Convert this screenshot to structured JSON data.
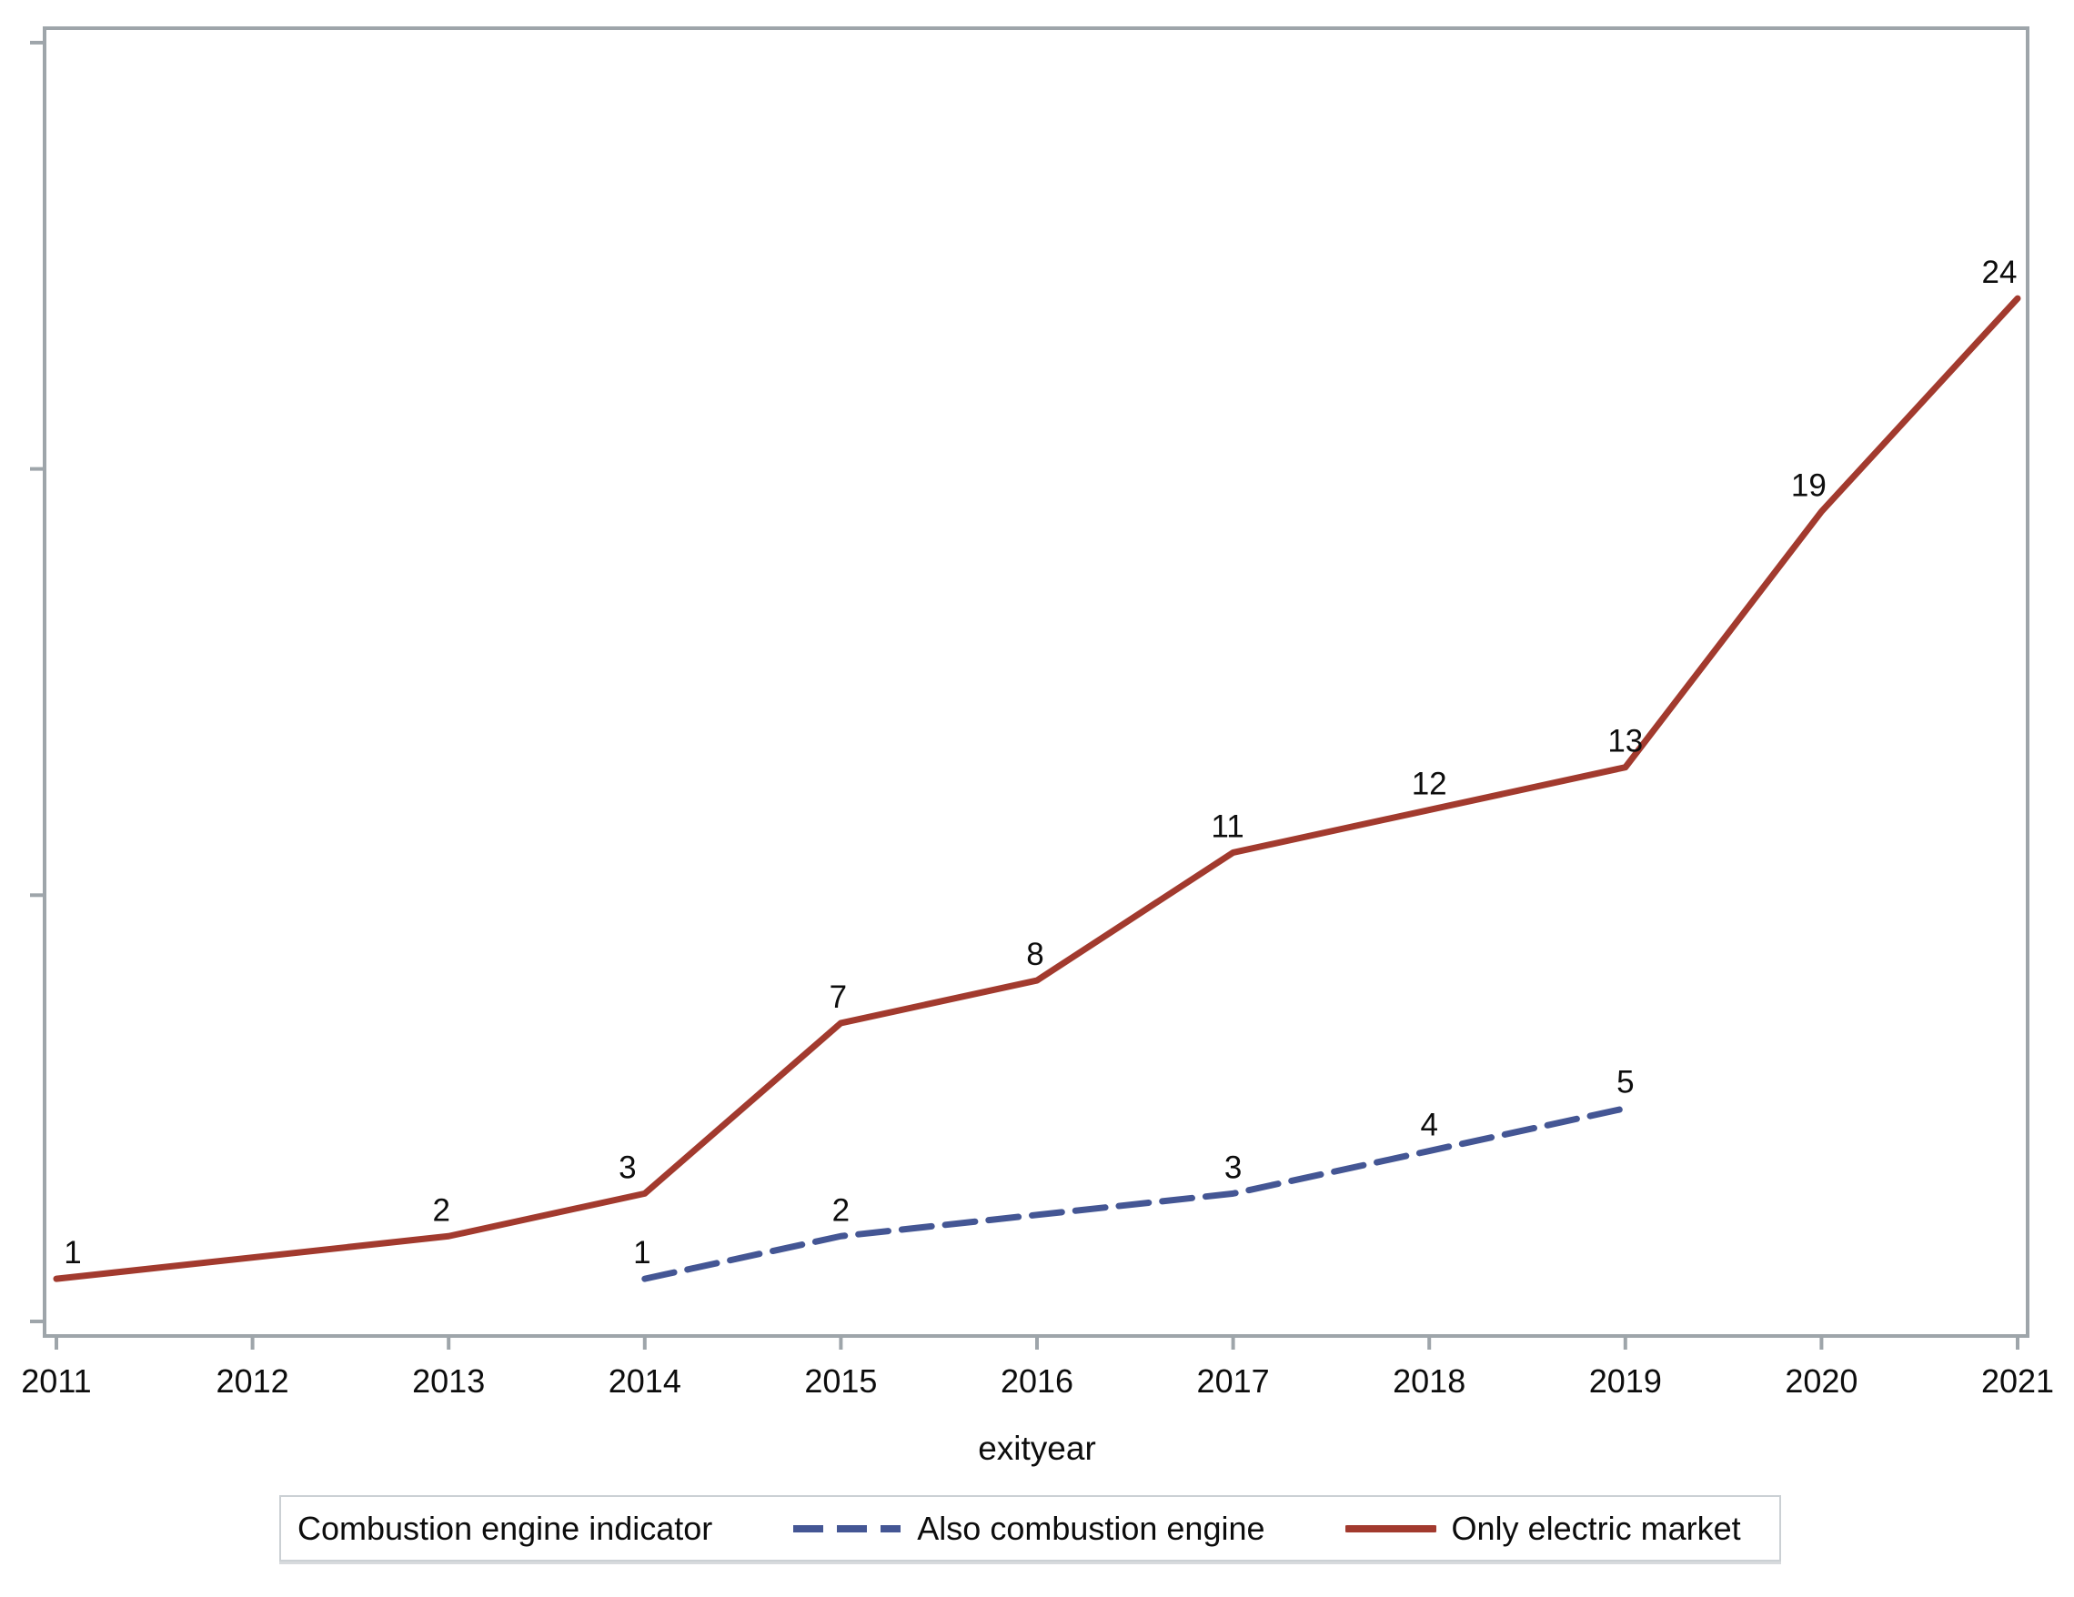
{
  "chart_data": {
    "type": "line",
    "title": "",
    "xlabel": "exityear",
    "ylabel": "",
    "x_ticks": [
      2011,
      2012,
      2013,
      2014,
      2015,
      2016,
      2017,
      2018,
      2019,
      2020,
      2021
    ],
    "y_axis": {
      "tick_values": [
        0,
        10,
        20,
        30
      ],
      "tick_labels_shown": false,
      "ylim": [
        -0.4,
        30.3
      ]
    },
    "grid": false,
    "data_labels_shown": true,
    "series": [
      {
        "name": "Also combustion engine",
        "line_style": "dashed",
        "color": "#445694",
        "x": [
          2014,
          2015,
          2017,
          2018,
          2019
        ],
        "y": [
          1,
          2,
          3,
          4,
          5
        ]
      },
      {
        "name": "Only electric market",
        "line_style": "solid",
        "color": "#A23A2E",
        "x": [
          2011,
          2013,
          2014,
          2015,
          2016,
          2017,
          2018,
          2019,
          2020,
          2021
        ],
        "y": [
          1,
          2,
          3,
          7,
          8,
          11,
          12,
          13,
          19,
          24
        ]
      }
    ],
    "legend": {
      "title": "Combustion engine indicator",
      "position": "bottom"
    },
    "colors": {
      "axis_frame": "#9ea5aa",
      "text": "#0d0d0d",
      "background": "#ffffff"
    }
  }
}
